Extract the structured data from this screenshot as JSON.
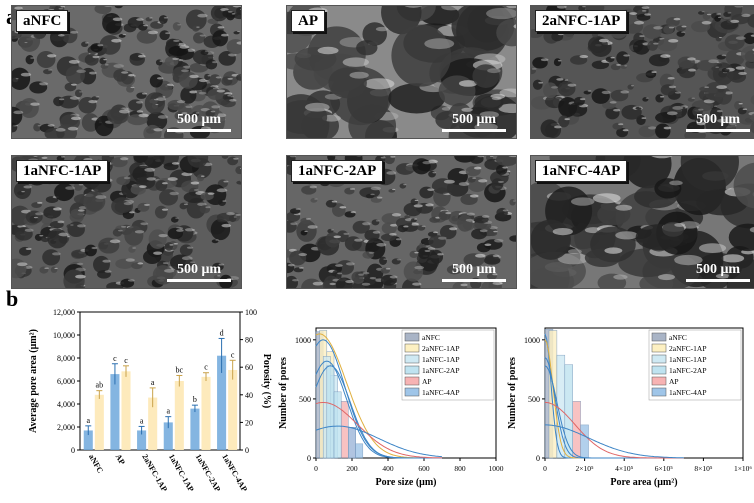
{
  "panel_a": "a",
  "panel_b": "b",
  "scale_label": "500 μm",
  "sem_images": [
    {
      "label": "aNFC"
    },
    {
      "label": "AP"
    },
    {
      "label": "2aNFC-1AP"
    },
    {
      "label": "1aNFC-1AP"
    },
    {
      "label": "1aNFC-2AP"
    },
    {
      "label": "1aNFC-4AP"
    }
  ],
  "chart_data": [
    {
      "type": "bar",
      "categories": [
        "aNFC",
        "AP",
        "2aNFC-1AP",
        "1aNFC-1AP",
        "1aNFC-2AP",
        "1aNFC-4AP"
      ],
      "series": [
        {
          "name": "Average pore area (μm²)",
          "values": [
            1700,
            6600,
            1700,
            2400,
            3600,
            8200
          ],
          "err": [
            400,
            900,
            350,
            500,
            300,
            1500
          ],
          "letters": [
            "a",
            "c",
            "a",
            "a",
            "b",
            "d"
          ],
          "color": "#6fa8dc"
        },
        {
          "name": "Porosity (%)",
          "values": [
            40,
            57,
            38,
            50,
            53,
            58
          ],
          "err": [
            3,
            4,
            7,
            4,
            3,
            7
          ],
          "letters": [
            "ab",
            "c",
            "a",
            "bc",
            "c",
            "c"
          ],
          "color": "#fde9b8"
        }
      ],
      "ylabel": "Average pore area (μm²)",
      "y2label": "Porosity (%)",
      "ylim": [
        0,
        12000
      ],
      "y2lim": [
        0,
        100
      ],
      "yticks": [
        "0",
        "2,000",
        "4,000",
        "6,000",
        "8,000",
        "10,000",
        "12,000"
      ],
      "y2ticks": [
        "0",
        "20",
        "40",
        "60",
        "80",
        "100"
      ]
    },
    {
      "type": "bar",
      "xlabel": "Pore size (μm)",
      "ylabel": "Number of pores",
      "xlim": [
        0,
        1000
      ],
      "ylim": [
        0,
        1100
      ],
      "xticks": [
        "0",
        "200",
        "400",
        "600",
        "800",
        "1000"
      ],
      "yticks": [
        "0",
        "500",
        "1000"
      ],
      "series": [
        {
          "name": "aNFC",
          "color": "#a9b4c6",
          "bars": [
            [
              0,
              1070
            ],
            [
              40,
              400
            ]
          ],
          "curve": {
            "peak": 1000,
            "center": 40,
            "width": 120
          }
        },
        {
          "name": "2aNFC-1AP",
          "color": "#fdf0c2",
          "bars": [
            [
              20,
              1080
            ],
            [
              60,
              900
            ]
          ],
          "curve": {
            "peak": 1050,
            "center": 20,
            "width": 150
          }
        },
        {
          "name": "1aNFC-1AP",
          "color": "#cfe9f3",
          "bars": [
            [
              40,
              860
            ],
            [
              80,
              700
            ]
          ],
          "curve": {
            "peak": 820,
            "center": 60,
            "width": 110
          }
        },
        {
          "name": "1aNFC-2AP",
          "color": "#bfe3f0",
          "bars": [
            [
              60,
              780
            ],
            [
              100,
              560
            ]
          ],
          "curve": {
            "peak": 780,
            "center": 80,
            "width": 110
          }
        },
        {
          "name": "AP",
          "color": "#f7b3b3",
          "bars": [
            [
              140,
              480
            ],
            [
              180,
              260
            ]
          ],
          "curve": {
            "peak": 470,
            "center": 40,
            "width": 190
          }
        },
        {
          "name": "1aNFC-4AP",
          "color": "#9fc5e8",
          "bars": [
            [
              180,
              260
            ],
            [
              220,
              120
            ]
          ],
          "curve": {
            "peak": 270,
            "center": 120,
            "width": 230
          }
        }
      ]
    },
    {
      "type": "bar",
      "xlabel": "Pore area (μm²)",
      "ylabel": "Number of pores",
      "xlim": [
        0,
        1000000
      ],
      "ylim": [
        0,
        1100
      ],
      "xticks": [
        "0",
        "2×10⁵",
        "4×10⁵",
        "6×10⁵",
        "8×10⁵",
        "1×10⁶"
      ],
      "yticks": [
        "0",
        "500",
        "1000"
      ],
      "series": [
        {
          "name": "aNFC",
          "color": "#a9b4c6",
          "bars": [
            [
              0,
              1090
            ]
          ],
          "curve": {
            "peak": 1050,
            "center": 0,
            "width": 30000
          }
        },
        {
          "name": "2aNFC-1AP",
          "color": "#fdf0c2",
          "bars": [
            [
              20000,
              1080
            ]
          ],
          "curve": {
            "peak": 1000,
            "center": 0,
            "width": 40000
          }
        },
        {
          "name": "1aNFC-1AP",
          "color": "#cfe9f3",
          "bars": [
            [
              60000,
              870
            ]
          ],
          "curve": {
            "peak": 850,
            "center": 0,
            "width": 50000
          }
        },
        {
          "name": "1aNFC-2AP",
          "color": "#bfe3f0",
          "bars": [
            [
              100000,
              790
            ]
          ],
          "curve": {
            "peak": 780,
            "center": 0,
            "width": 60000
          }
        },
        {
          "name": "AP",
          "color": "#f7b3b3",
          "bars": [
            [
              140000,
              480
            ]
          ],
          "curve": {
            "peak": 470,
            "center": 0,
            "width": 150000
          }
        },
        {
          "name": "1aNFC-4AP",
          "color": "#9fc5e8",
          "bars": [
            [
              180000,
              280
            ]
          ],
          "curve": {
            "peak": 280,
            "center": 0,
            "width": 220000
          }
        }
      ]
    }
  ]
}
